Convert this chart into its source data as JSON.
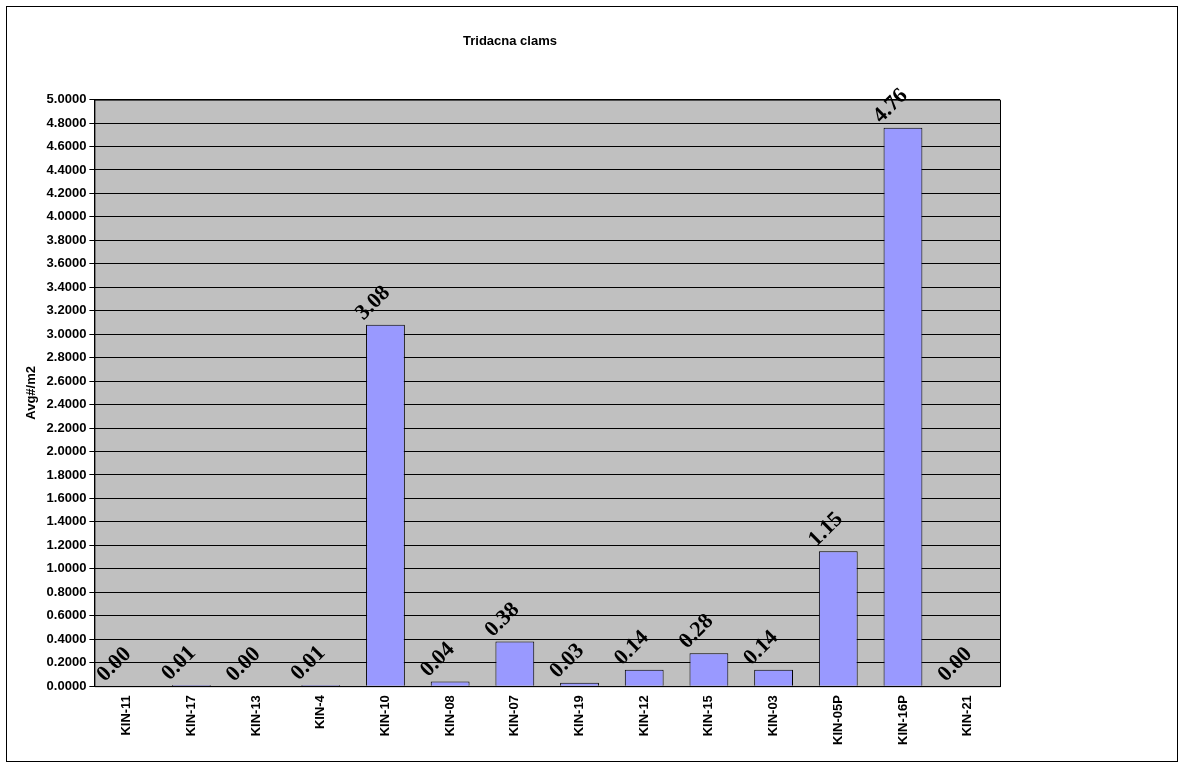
{
  "chart_data": {
    "type": "bar",
    "title": "Tridacna clams",
    "ylabel": "Avg#/m2",
    "categories": [
      "KIN-11",
      "KIN-17",
      "KIN-13",
      "KIN-4",
      "KIN-10",
      "KIN-08",
      "KIN-07",
      "KIN-19",
      "KIN-12",
      "KIN-15",
      "KIN-03",
      "KIN-05P",
      "KIN-16P",
      "KIN-21"
    ],
    "values": [
      0,
      0.01,
      0,
      0.01,
      3.08,
      0.04,
      0.38,
      0.03,
      0.14,
      0.28,
      0.14,
      1.15,
      4.76,
      0
    ],
    "value_labels": [
      "0.00",
      "0.01",
      "0.00",
      "0.01",
      "3.08",
      "0.04",
      "0.38",
      "0.03",
      "0.14",
      "0.28",
      "0.14",
      "1.15",
      "4.76",
      "0.00"
    ],
    "color": "#9999ff",
    "ylim": [
      0,
      5
    ],
    "yticks": [
      {
        "value": 0,
        "label": "0.0000"
      },
      {
        "value": 0.2,
        "label": "0.2000"
      },
      {
        "value": 0.4,
        "label": "0.4000"
      },
      {
        "value": 0.6,
        "label": "0.6000"
      },
      {
        "value": 0.8,
        "label": "0.8000"
      },
      {
        "value": 1,
        "label": "1.0000"
      },
      {
        "value": 1.2,
        "label": "1.2000"
      },
      {
        "value": 1.4,
        "label": "1.4000"
      },
      {
        "value": 1.6,
        "label": "1.6000"
      },
      {
        "value": 1.8,
        "label": "1.8000"
      },
      {
        "value": 2,
        "label": "2.0000"
      },
      {
        "value": 2.2,
        "label": "2.2000"
      },
      {
        "value": 2.4,
        "label": "2.4000"
      },
      {
        "value": 2.6,
        "label": "2.6000"
      },
      {
        "value": 2.8,
        "label": "2.8000"
      },
      {
        "value": 3,
        "label": "3.0000"
      },
      {
        "value": 3.2,
        "label": "3.2000"
      },
      {
        "value": 3.4,
        "label": "3.4000"
      },
      {
        "value": 3.6,
        "label": "3.6000"
      },
      {
        "value": 3.8,
        "label": "3.8000"
      },
      {
        "value": 4,
        "label": "4.0000"
      },
      {
        "value": 4.2,
        "label": "4.2000"
      },
      {
        "value": 4.4,
        "label": "4.4000"
      },
      {
        "value": 4.6,
        "label": "4.6000"
      },
      {
        "value": 4.8,
        "label": "4.8000"
      },
      {
        "value": 5,
        "label": "5.0000"
      }
    ],
    "grid": "y",
    "legend": false
  }
}
